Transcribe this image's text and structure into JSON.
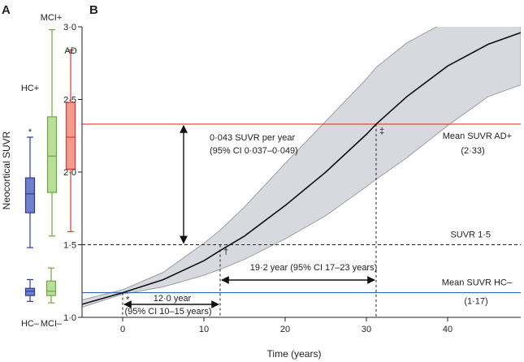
{
  "figure": {
    "panel_a_letter": "A",
    "panel_b_letter": "B"
  },
  "chart_data": [
    {
      "type": "box",
      "panel": "A",
      "ylabel": "Neocortical SUVR",
      "categories": [
        "HC+",
        "MCI+",
        "AD",
        "HC–",
        "MCI–"
      ],
      "outlier_marker": "*",
      "colors": {
        "HC+": "#2b3a9e",
        "MCI+": "#6aaa3a",
        "AD": "#e23a2f",
        "HC–": "#2b3a9e",
        "MCI–": "#6aaa3a"
      },
      "fill_colors": {
        "HC+": "#6f7fc9",
        "MCI+": "#b9dd9a",
        "AD": "#f39b8e",
        "HC–": "#6f7fc9",
        "MCI–": "#b9dd9a"
      },
      "boxes": [
        {
          "name": "HC+",
          "min": 1.48,
          "q1": 1.72,
          "median": 1.85,
          "q3": 1.96,
          "max": 2.24,
          "outlier": 2.28
        },
        {
          "name": "MCI+",
          "min": 1.56,
          "q1": 1.86,
          "median": 2.11,
          "q3": 2.38,
          "max": 2.98
        },
        {
          "name": "AD",
          "min": 1.59,
          "q1": 2.02,
          "median": 2.24,
          "q3": 2.48,
          "max": 2.84
        },
        {
          "name": "HC–",
          "min": 1.11,
          "q1": 1.15,
          "median": 1.18,
          "q3": 1.2,
          "max": 1.26
        },
        {
          "name": "MCI–",
          "min": 1.1,
          "q1": 1.15,
          "median": 1.18,
          "q3": 1.25,
          "max": 1.34
        }
      ]
    },
    {
      "type": "line",
      "panel": "B",
      "xlabel": "Time (years)",
      "ylabel": "",
      "xlim": [
        -5,
        49
      ],
      "ylim": [
        1.0,
        3.0
      ],
      "xticks": [
        0,
        10,
        20,
        30,
        40
      ],
      "yticks": [
        "1·0",
        "1·5",
        "2·0",
        "2·5",
        "3·0"
      ],
      "ytick_values": [
        1.0,
        1.5,
        2.0,
        2.5,
        3.0
      ],
      "series": [
        {
          "x": [
            -5,
            0,
            5,
            10,
            12,
            15,
            20,
            25,
            30,
            31.2,
            35,
            40,
            45,
            49
          ],
          "y": [
            1.09,
            1.17,
            1.26,
            1.39,
            1.46,
            1.56,
            1.77,
            2.0,
            2.26,
            2.33,
            2.52,
            2.73,
            2.88,
            2.96
          ],
          "ci_lower": [
            1.07,
            1.16,
            1.21,
            1.29,
            1.33,
            1.4,
            1.54,
            1.7,
            1.9,
            1.95,
            2.1,
            2.32,
            2.52,
            2.6
          ],
          "ci_upper": [
            1.12,
            1.19,
            1.31,
            1.51,
            1.6,
            1.76,
            2.06,
            2.35,
            2.64,
            2.72,
            2.89,
            3.04,
            3.1,
            3.12
          ]
        }
      ],
      "reference_lines": [
        {
          "y": 2.33,
          "color": "#e23a2f",
          "style": "solid",
          "label": "Mean SUVR AD+",
          "sub": "(2·33)"
        },
        {
          "y": 1.5,
          "color": "#222222",
          "style": "dashed",
          "label": "SUVR 1·5"
        },
        {
          "y": 1.17,
          "color": "#2b6ab8",
          "style": "solid",
          "label": "Mean SUVR HC–",
          "sub": "(1·17)"
        }
      ],
      "vertical_lines": [
        {
          "x": 0,
          "from": 1.0,
          "to": 1.17,
          "marker": "*"
        },
        {
          "x": 12.0,
          "from": 1.0,
          "to": 1.5,
          "marker": "†"
        },
        {
          "x": 31.2,
          "from": 1.0,
          "to": 2.33,
          "marker": "‡"
        }
      ],
      "annotations": {
        "rate_line1": "0·043 SUVR per year",
        "rate_line2": "(95% CI 0·037–0·049)",
        "interval_a_line1": "12·0 year",
        "interval_a_line2": "(95% CI 10–15 years)",
        "interval_b": "19·2 year (95% CI 17–23 years)"
      }
    }
  ]
}
